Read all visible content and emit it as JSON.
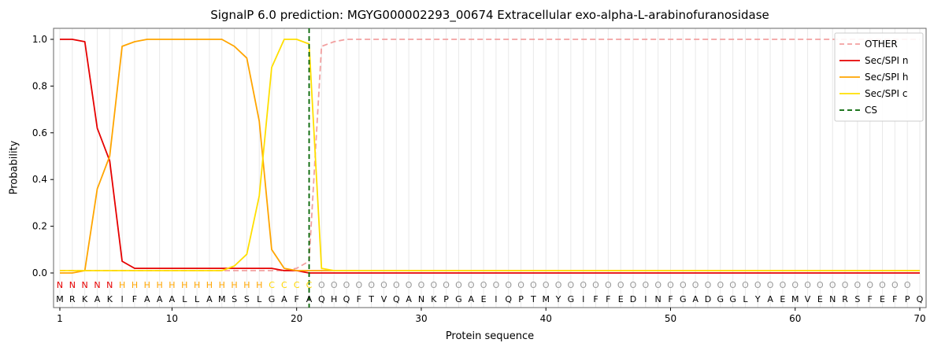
{
  "chart_data": {
    "type": "line",
    "title": "SignalP 6.0 prediction: MGYG000002293_00674 Extracellular exo-alpha-L-arabinofuranosidase",
    "xlabel": "Protein sequence",
    "ylabel": "Probability",
    "xticks": [
      1,
      10,
      20,
      30,
      40,
      50,
      60,
      70
    ],
    "yticks": [
      0.0,
      0.2,
      0.4,
      0.6,
      0.8,
      1.0
    ],
    "ylim": [
      -0.15,
      1.05
    ],
    "grid": "vertical-per-residue",
    "legend_position": "upper right",
    "sequence": "MRKAKIFAAALLAMSSLGAFAQHQFTVQANKPGAEIQPTMYGIFFEDINFGADGGLYAEMVENRSFEFPQ",
    "region_labels": "NNNNNHHHHHHHHHHHHCCCCOOOOOOOOOOOOOOOOOOOOOOOOOOOOOOOOOOOOOOOOOOOOOOOO",
    "region_colors": {
      "N": "#e60000",
      "H": "#ffa500",
      "C": "#ffd700",
      "O": "#999999"
    },
    "cs_position": 21,
    "series": [
      {
        "name": "OTHER",
        "color": "#f2a0a0",
        "style": "dashed",
        "values": [
          0.01,
          0.01,
          0.01,
          0.01,
          0.01,
          0.01,
          0.01,
          0.01,
          0.01,
          0.01,
          0.01,
          0.01,
          0.01,
          0.01,
          0.01,
          0.01,
          0.01,
          0.01,
          0.01,
          0.02,
          0.05,
          0.97,
          0.99,
          1,
          1,
          1,
          1,
          1,
          1,
          1,
          1,
          1,
          1,
          1,
          1,
          1,
          1,
          1,
          1,
          1,
          1,
          1,
          1,
          1,
          1,
          1,
          1,
          1,
          1,
          1,
          1,
          1,
          1,
          1,
          1,
          1,
          1,
          1,
          1,
          1,
          1,
          1,
          1,
          1,
          1,
          1,
          1,
          1,
          1,
          1
        ]
      },
      {
        "name": "Sec/SPI n",
        "color": "#e60000",
        "style": "solid",
        "values": [
          1,
          1,
          0.99,
          0.62,
          0.48,
          0.05,
          0.02,
          0.02,
          0.02,
          0.02,
          0.02,
          0.02,
          0.02,
          0.02,
          0.02,
          0.02,
          0.02,
          0.02,
          0.01,
          0.01,
          0,
          0,
          0,
          0,
          0,
          0,
          0,
          0,
          0,
          0,
          0,
          0,
          0,
          0,
          0,
          0,
          0,
          0,
          0,
          0,
          0,
          0,
          0,
          0,
          0,
          0,
          0,
          0,
          0,
          0,
          0,
          0,
          0,
          0,
          0,
          0,
          0,
          0,
          0,
          0,
          0,
          0,
          0,
          0,
          0,
          0,
          0,
          0,
          0,
          0
        ]
      },
      {
        "name": "Sec/SPI h",
        "color": "#ffa500",
        "style": "solid",
        "values": [
          0,
          0,
          0.01,
          0.36,
          0.5,
          0.97,
          0.99,
          1,
          1,
          1,
          1,
          1,
          1,
          1,
          0.97,
          0.92,
          0.65,
          0.1,
          0.02,
          0.01,
          0.01,
          0.01,
          0.01,
          0.01,
          0.01,
          0.01,
          0.01,
          0.01,
          0.01,
          0.01,
          0.01,
          0.01,
          0.01,
          0.01,
          0.01,
          0.01,
          0.01,
          0.01,
          0.01,
          0.01,
          0.01,
          0.01,
          0.01,
          0.01,
          0.01,
          0.01,
          0.01,
          0.01,
          0.01,
          0.01,
          0.01,
          0.01,
          0.01,
          0.01,
          0.01,
          0.01,
          0.01,
          0.01,
          0.01,
          0.01,
          0.01,
          0.01,
          0.01,
          0.01,
          0.01,
          0.01,
          0.01,
          0.01,
          0.01,
          0.01
        ]
      },
      {
        "name": "Sec/SPI c",
        "color": "#ffdf00",
        "style": "solid",
        "values": [
          0.01,
          0.01,
          0.01,
          0.01,
          0.01,
          0.01,
          0.01,
          0.01,
          0.01,
          0.01,
          0.01,
          0.01,
          0.01,
          0.01,
          0.03,
          0.08,
          0.33,
          0.88,
          1,
          1,
          0.98,
          0.02,
          0.01,
          0.01,
          0.01,
          0.01,
          0.01,
          0.01,
          0.01,
          0.01,
          0.01,
          0.01,
          0.01,
          0.01,
          0.01,
          0.01,
          0.01,
          0.01,
          0.01,
          0.01,
          0.01,
          0.01,
          0.01,
          0.01,
          0.01,
          0.01,
          0.01,
          0.01,
          0.01,
          0.01,
          0.01,
          0.01,
          0.01,
          0.01,
          0.01,
          0.01,
          0.01,
          0.01,
          0.01,
          0.01,
          0.01,
          0.01,
          0.01,
          0.01,
          0.01,
          0.01,
          0.01,
          0.01,
          0.01,
          0.01
        ]
      },
      {
        "name": "CS",
        "color": "#006400",
        "style": "dashed-vertical",
        "x": 21
      }
    ]
  }
}
